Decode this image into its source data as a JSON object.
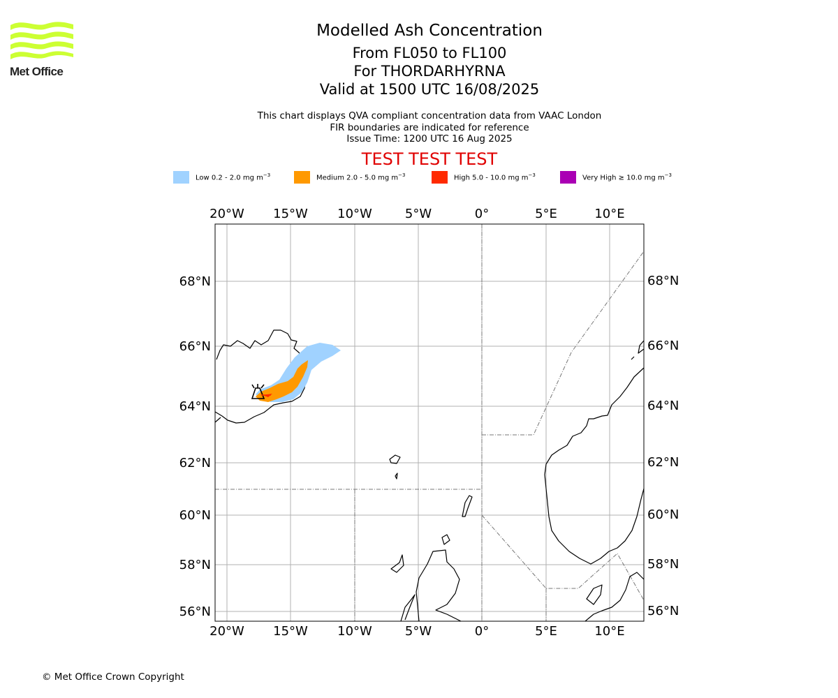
{
  "logo": {
    "text": "Met Office",
    "color": "#ccff33"
  },
  "header": {
    "title": "Modelled Ash Concentration",
    "level": "From FL050 to FL100",
    "volcano": "For THORDARHYRNA",
    "valid": "Valid at 1500 UTC 16/08/2025",
    "desc1": "This chart displays QVA compliant concentration data from VAAC London",
    "desc2": "FIR boundaries are indicated for reference",
    "issue": "Issue Time: 1200 UTC 16 Aug 2025",
    "banner": "TEST TEST TEST"
  },
  "legend": [
    {
      "label": "Low 0.2 - 2.0 mg m",
      "unit_exp": "−3",
      "color": "#a0d2ff"
    },
    {
      "label": "Medium 2.0 - 5.0 mg m",
      "unit_exp": "−3",
      "color": "#ff9900"
    },
    {
      "label": "High 5.0 - 10.0 mg m",
      "unit_exp": "−3",
      "color": "#ff2a00"
    },
    {
      "label": "Very High  ≥  10.0 mg m",
      "unit_exp": "−3",
      "color": "#aa00b4"
    }
  ],
  "map": {
    "lon_labels": [
      "20°W",
      "15°W",
      "10°W",
      "5°W",
      "0°",
      "5°E",
      "10°E"
    ],
    "lat_labels": [
      "68°N",
      "66°N",
      "64°N",
      "62°N",
      "60°N",
      "58°N",
      "56°N"
    ]
  },
  "footer": {
    "copyright": "© Met Office Crown Copyright"
  }
}
